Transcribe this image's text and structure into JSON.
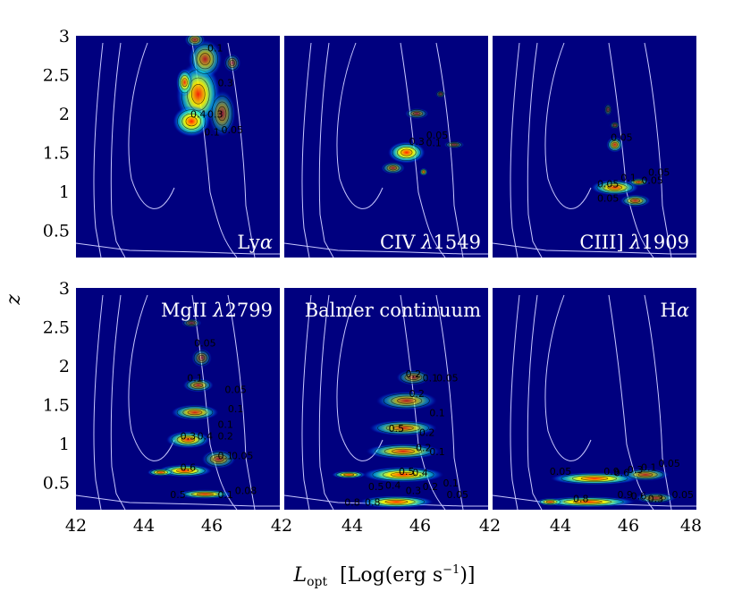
{
  "chart_data": {
    "type": "heatmap",
    "layout": "2x3 grid, shared axes",
    "xlabel_main": "L",
    "xlabel_sub": "opt",
    "xlabel_unit": "[Log(erg s",
    "xlabel_unit_sup": "−1",
    "xlabel_unit_end": ")]",
    "ylabel": "z",
    "xlim": [
      42,
      48
    ],
    "ylim": [
      0.15,
      3
    ],
    "x_ticks": [
      "42",
      "44",
      "46",
      "42",
      "44",
      "46",
      "42",
      "44",
      "46",
      "48"
    ],
    "y_ticks_top": [
      "3",
      "2.5",
      "2",
      "1.5",
      "1",
      "0.5"
    ],
    "y_ticks_bottom": [
      "3",
      "2.5",
      "2",
      "1.5",
      "1",
      "0.5"
    ],
    "colors": {
      "background": "#00007f",
      "survey_contour": "#c8c8ff",
      "density_contour": "#000000",
      "colormap": [
        "#00007f",
        "#0000ff",
        "#00a0ff",
        "#00ffff",
        "#7fff7f",
        "#ffff00",
        "#ff8000",
        "#ff0000",
        "#7f0000"
      ]
    },
    "panels": [
      {
        "id": "lya",
        "label": "Lyα",
        "label_main": "Ly",
        "label_greek": "α",
        "label_pos": "bottom-right",
        "blobs": [
          {
            "x": 45.6,
            "y": 2.25,
            "sx": 0.65,
            "sy": 0.42,
            "a": 0.95
          },
          {
            "x": 45.4,
            "y": 1.9,
            "sx": 0.55,
            "sy": 0.2,
            "a": 1.0
          },
          {
            "x": 45.8,
            "y": 2.7,
            "sx": 0.5,
            "sy": 0.25,
            "a": 0.7
          },
          {
            "x": 46.3,
            "y": 2.0,
            "sx": 0.4,
            "sy": 0.3,
            "a": 0.55
          },
          {
            "x": 45.2,
            "y": 2.4,
            "sx": 0.25,
            "sy": 0.18,
            "a": 0.9
          },
          {
            "x": 46.6,
            "y": 2.65,
            "sx": 0.25,
            "sy": 0.12,
            "a": 0.45
          },
          {
            "x": 45.5,
            "y": 2.95,
            "sx": 0.3,
            "sy": 0.1,
            "a": 0.6
          }
        ],
        "contour_labels": [
          {
            "text": "0.1",
            "x": 46.1,
            "y": 2.8
          },
          {
            "text": "0.4",
            "x": 45.6,
            "y": 1.95
          },
          {
            "text": "0.3",
            "x": 46.1,
            "y": 1.95
          },
          {
            "text": "0.1",
            "x": 46.0,
            "y": 1.72
          },
          {
            "text": "0.05",
            "x": 46.6,
            "y": 1.75
          },
          {
            "text": "0.3",
            "x": 46.4,
            "y": 2.35
          }
        ]
      },
      {
        "id": "civ",
        "label": "CIV λ1549",
        "label_main": "CIV ",
        "label_greek": "λ",
        "label_num": "1549",
        "label_pos": "bottom-right",
        "blobs": [
          {
            "x": 45.6,
            "y": 1.5,
            "sx": 0.55,
            "sy": 0.14,
            "a": 1.0
          },
          {
            "x": 45.9,
            "y": 2.0,
            "sx": 0.35,
            "sy": 0.07,
            "a": 0.5
          },
          {
            "x": 45.2,
            "y": 1.3,
            "sx": 0.35,
            "sy": 0.08,
            "a": 0.6
          },
          {
            "x": 46.1,
            "y": 1.25,
            "sx": 0.12,
            "sy": 0.05,
            "a": 0.9
          },
          {
            "x": 47.0,
            "y": 1.6,
            "sx": 0.3,
            "sy": 0.05,
            "a": 0.45
          },
          {
            "x": 46.6,
            "y": 2.25,
            "sx": 0.15,
            "sy": 0.05,
            "a": 0.4
          }
        ],
        "contour_labels": [
          {
            "text": "0.3",
            "x": 45.9,
            "y": 1.6
          },
          {
            "text": "0.1",
            "x": 46.4,
            "y": 1.58
          },
          {
            "text": "0.05",
            "x": 46.5,
            "y": 1.68
          }
        ]
      },
      {
        "id": "ciii",
        "label": "CIII] λ1909",
        "label_main": "CIII] ",
        "label_greek": "λ",
        "label_num": "1909",
        "label_pos": "bottom-right",
        "blobs": [
          {
            "x": 45.6,
            "y": 1.05,
            "sx": 0.7,
            "sy": 0.1,
            "a": 0.9
          },
          {
            "x": 45.6,
            "y": 1.6,
            "sx": 0.25,
            "sy": 0.1,
            "a": 0.75
          },
          {
            "x": 46.2,
            "y": 0.88,
            "sx": 0.45,
            "sy": 0.08,
            "a": 0.7
          },
          {
            "x": 46.3,
            "y": 1.12,
            "sx": 0.3,
            "sy": 0.05,
            "a": 0.8
          },
          {
            "x": 45.4,
            "y": 2.05,
            "sx": 0.12,
            "sy": 0.08,
            "a": 0.4
          },
          {
            "x": 45.6,
            "y": 1.85,
            "sx": 0.15,
            "sy": 0.05,
            "a": 0.45
          }
        ],
        "contour_labels": [
          {
            "text": "0.05",
            "x": 45.8,
            "y": 1.65
          },
          {
            "text": "0.05",
            "x": 46.9,
            "y": 1.2
          },
          {
            "text": "0.1",
            "x": 46.0,
            "y": 1.13
          },
          {
            "text": "0.05",
            "x": 46.7,
            "y": 1.1
          },
          {
            "text": "0.05",
            "x": 45.4,
            "y": 1.05
          },
          {
            "text": "0.05",
            "x": 45.4,
            "y": 0.87
          }
        ]
      },
      {
        "id": "mgii",
        "label": "MgII λ2799",
        "label_main": "MgII ",
        "label_greek": "λ",
        "label_num": "2799",
        "label_pos": "top-right",
        "blobs": [
          {
            "x": 45.2,
            "y": 0.65,
            "sx": 0.8,
            "sy": 0.08,
            "a": 1.0
          },
          {
            "x": 44.5,
            "y": 0.63,
            "sx": 0.4,
            "sy": 0.05,
            "a": 0.95
          },
          {
            "x": 45.3,
            "y": 1.05,
            "sx": 0.65,
            "sy": 0.11,
            "a": 0.9
          },
          {
            "x": 45.5,
            "y": 1.4,
            "sx": 0.7,
            "sy": 0.1,
            "a": 0.8
          },
          {
            "x": 45.8,
            "y": 0.35,
            "sx": 0.8,
            "sy": 0.06,
            "a": 0.9
          },
          {
            "x": 45.6,
            "y": 1.75,
            "sx": 0.45,
            "sy": 0.09,
            "a": 0.65
          },
          {
            "x": 45.7,
            "y": 2.1,
            "sx": 0.3,
            "sy": 0.12,
            "a": 0.45
          },
          {
            "x": 45.4,
            "y": 2.55,
            "sx": 0.3,
            "sy": 0.06,
            "a": 0.4
          },
          {
            "x": 46.2,
            "y": 0.8,
            "sx": 0.5,
            "sy": 0.12,
            "a": 0.6
          }
        ],
        "contour_labels": [
          {
            "text": "0.05",
            "x": 45.8,
            "y": 2.25
          },
          {
            "text": "0.1",
            "x": 45.5,
            "y": 1.8
          },
          {
            "text": "0.05",
            "x": 46.7,
            "y": 1.65
          },
          {
            "text": "0.1",
            "x": 46.7,
            "y": 1.4
          },
          {
            "text": "0.1",
            "x": 46.4,
            "y": 1.2
          },
          {
            "text": "0.3",
            "x": 45.3,
            "y": 1.05
          },
          {
            "text": "0.4",
            "x": 45.8,
            "y": 1.05
          },
          {
            "text": "0.2",
            "x": 46.4,
            "y": 1.05
          },
          {
            "text": "0.1",
            "x": 46.4,
            "y": 0.8
          },
          {
            "text": "0.05",
            "x": 46.9,
            "y": 0.8
          },
          {
            "text": "0.6",
            "x": 45.3,
            "y": 0.65
          },
          {
            "text": "0.5",
            "x": 45.0,
            "y": 0.3
          },
          {
            "text": "0.1",
            "x": 46.4,
            "y": 0.3
          },
          {
            "text": "0.08",
            "x": 47.0,
            "y": 0.35
          }
        ]
      },
      {
        "id": "balmer",
        "label": "Balmer continuum",
        "label_main": "Balmer continuum",
        "label_greek": "",
        "label_num": "",
        "label_pos": "top-right",
        "blobs": [
          {
            "x": 45.5,
            "y": 0.6,
            "sx": 1.2,
            "sy": 0.1,
            "a": 1.0
          },
          {
            "x": 45.3,
            "y": 0.25,
            "sx": 1.1,
            "sy": 0.08,
            "a": 1.0
          },
          {
            "x": 45.5,
            "y": 0.9,
            "sx": 1.1,
            "sy": 0.1,
            "a": 0.85
          },
          {
            "x": 45.5,
            "y": 1.2,
            "sx": 1.0,
            "sy": 0.1,
            "a": 0.8
          },
          {
            "x": 45.6,
            "y": 1.55,
            "sx": 0.9,
            "sy": 0.12,
            "a": 0.7
          },
          {
            "x": 45.8,
            "y": 1.85,
            "sx": 0.5,
            "sy": 0.1,
            "a": 0.55
          },
          {
            "x": 43.9,
            "y": 0.6,
            "sx": 0.5,
            "sy": 0.05,
            "a": 0.95
          }
        ],
        "contour_labels": [
          {
            "text": "0.2",
            "x": 45.8,
            "y": 1.85
          },
          {
            "text": "0.1",
            "x": 46.3,
            "y": 1.8
          },
          {
            "text": "0.05",
            "x": 46.8,
            "y": 1.8
          },
          {
            "text": "0.2",
            "x": 45.9,
            "y": 1.6
          },
          {
            "text": "0.1",
            "x": 46.5,
            "y": 1.35
          },
          {
            "text": "0.5",
            "x": 45.3,
            "y": 1.15
          },
          {
            "text": "0.2",
            "x": 46.2,
            "y": 1.1
          },
          {
            "text": "0.1",
            "x": 46.5,
            "y": 0.85
          },
          {
            "text": "0.2",
            "x": 46.1,
            "y": 0.9
          },
          {
            "text": "0.5",
            "x": 45.6,
            "y": 0.6
          },
          {
            "text": "0.4",
            "x": 46.0,
            "y": 0.58
          },
          {
            "text": "0.5",
            "x": 44.7,
            "y": 0.4
          },
          {
            "text": "0.4",
            "x": 45.2,
            "y": 0.42
          },
          {
            "text": "0.3",
            "x": 45.8,
            "y": 0.35
          },
          {
            "text": "0.2",
            "x": 46.3,
            "y": 0.4
          },
          {
            "text": "0.8",
            "x": 44.0,
            "y": 0.2
          },
          {
            "text": "0.8",
            "x": 44.6,
            "y": 0.2
          },
          {
            "text": "0.1",
            "x": 46.9,
            "y": 0.45
          },
          {
            "text": "0.05",
            "x": 47.1,
            "y": 0.3
          }
        ]
      },
      {
        "id": "ha",
        "label": "Hα",
        "label_main": "H",
        "label_greek": "α",
        "label_num": "",
        "label_pos": "top-right",
        "blobs": [
          {
            "x": 45.0,
            "y": 0.55,
            "sx": 1.3,
            "sy": 0.08,
            "a": 1.0
          },
          {
            "x": 44.8,
            "y": 0.25,
            "sx": 1.4,
            "sy": 0.07,
            "a": 1.0
          },
          {
            "x": 46.5,
            "y": 0.6,
            "sx": 0.7,
            "sy": 0.08,
            "a": 0.7
          },
          {
            "x": 46.8,
            "y": 0.3,
            "sx": 0.6,
            "sy": 0.07,
            "a": 0.6
          },
          {
            "x": 43.7,
            "y": 0.25,
            "sx": 0.4,
            "sy": 0.05,
            "a": 0.9
          }
        ],
        "contour_labels": [
          {
            "text": "0.05",
            "x": 44.0,
            "y": 0.6
          },
          {
            "text": "0.9",
            "x": 45.5,
            "y": 0.6
          },
          {
            "text": "0.6",
            "x": 45.8,
            "y": 0.58
          },
          {
            "text": "0.3",
            "x": 46.2,
            "y": 0.62
          },
          {
            "text": "0.1",
            "x": 46.6,
            "y": 0.65
          },
          {
            "text": "0.05",
            "x": 47.2,
            "y": 0.7
          },
          {
            "text": "0.8",
            "x": 44.6,
            "y": 0.25
          },
          {
            "text": "0.9",
            "x": 45.9,
            "y": 0.3
          },
          {
            "text": "0.6",
            "x": 46.3,
            "y": 0.28
          },
          {
            "text": "0.3",
            "x": 46.8,
            "y": 0.25
          },
          {
            "text": "0.05",
            "x": 47.6,
            "y": 0.3
          }
        ]
      }
    ]
  }
}
